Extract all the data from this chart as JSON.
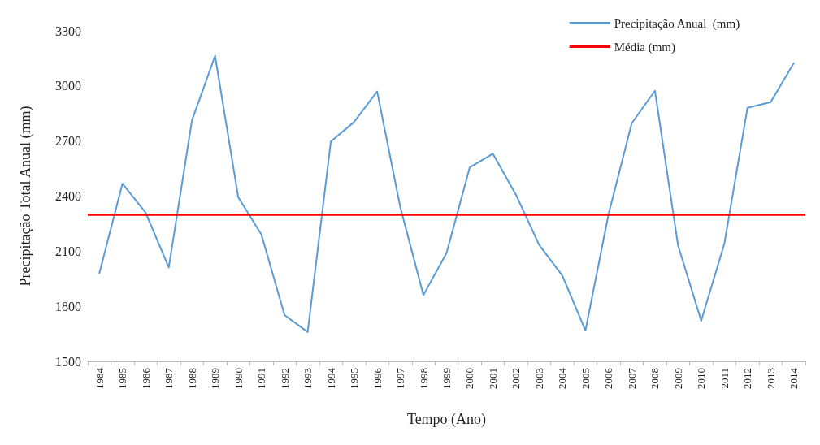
{
  "chart_data": {
    "type": "line",
    "xlabel": "Tempo (Ano)",
    "ylabel": "Precipitação Total Anual (mm)",
    "categories": [
      "1984",
      "1985",
      "1986",
      "1987",
      "1988",
      "1989",
      "1990",
      "1991",
      "1992",
      "1993",
      "1994",
      "1995",
      "1996",
      "1997",
      "1998",
      "1999",
      "2000",
      "2001",
      "2002",
      "2003",
      "2004",
      "2005",
      "2006",
      "2007",
      "2008",
      "2009",
      "2010",
      "2011",
      "2012",
      "2013",
      "2014"
    ],
    "series": [
      {
        "name": "Precipitação Anual  (mm)",
        "color": "#5b9bd5",
        "values": [
          1980,
          2468,
          2310,
          2011,
          2812,
          3164,
          2394,
          2191,
          1752,
          1660,
          2697,
          2803,
          2970,
          2340,
          1861,
          2090,
          2556,
          2631,
          2407,
          2134,
          1967,
          1668,
          2303,
          2797,
          2974,
          2131,
          1721,
          2140,
          2881,
          2912,
          3124
        ]
      }
    ],
    "ref_lines": [
      {
        "axis": "y",
        "value": 2300,
        "label": "Média (mm)",
        "color": "#ff0000"
      }
    ],
    "ylim": [
      1500,
      3300
    ],
    "yticks": [
      1500,
      1800,
      2100,
      2400,
      2700,
      3000,
      3300
    ],
    "grid": false,
    "legend": "top right",
    "marker": "none",
    "line_style": "solid"
  }
}
